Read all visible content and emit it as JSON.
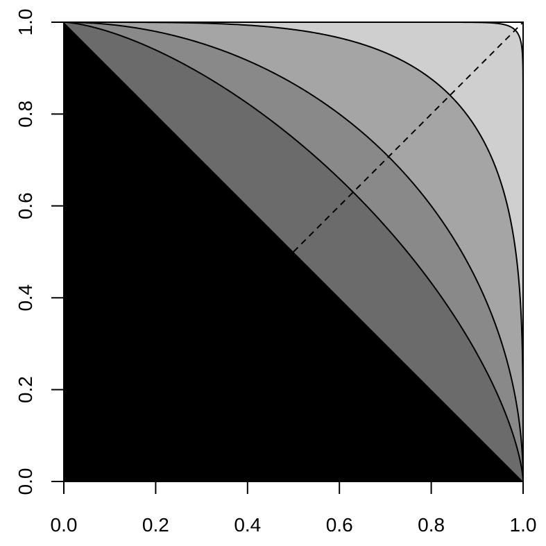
{
  "chart_data": {
    "type": "area",
    "title": "",
    "xlabel": "",
    "ylabel": "",
    "xlim": [
      0,
      1
    ],
    "ylim": [
      0,
      1
    ],
    "x_ticks": [
      "0.0",
      "0.2",
      "0.4",
      "0.6",
      "0.8",
      "1.0"
    ],
    "y_ticks": [
      "0.0",
      "0.2",
      "0.4",
      "0.6",
      "0.8",
      "1.0"
    ],
    "grid": false,
    "legend": "none",
    "curve_family": "x^p + y^p = 1",
    "series": [
      {
        "p": 1,
        "fill": "#000000"
      },
      {
        "p": 1.5,
        "fill": "#6b6b6b"
      },
      {
        "p": 2,
        "fill": "#898989"
      },
      {
        "p": 4,
        "fill": "#a5a5a5"
      },
      {
        "p": 40,
        "fill": "#cfcfcf"
      }
    ],
    "reference_line": {
      "x": [
        0.5,
        1.0
      ],
      "y": [
        0.5,
        1.0
      ],
      "style": "dashed"
    },
    "background_fill": "#ffffff"
  }
}
